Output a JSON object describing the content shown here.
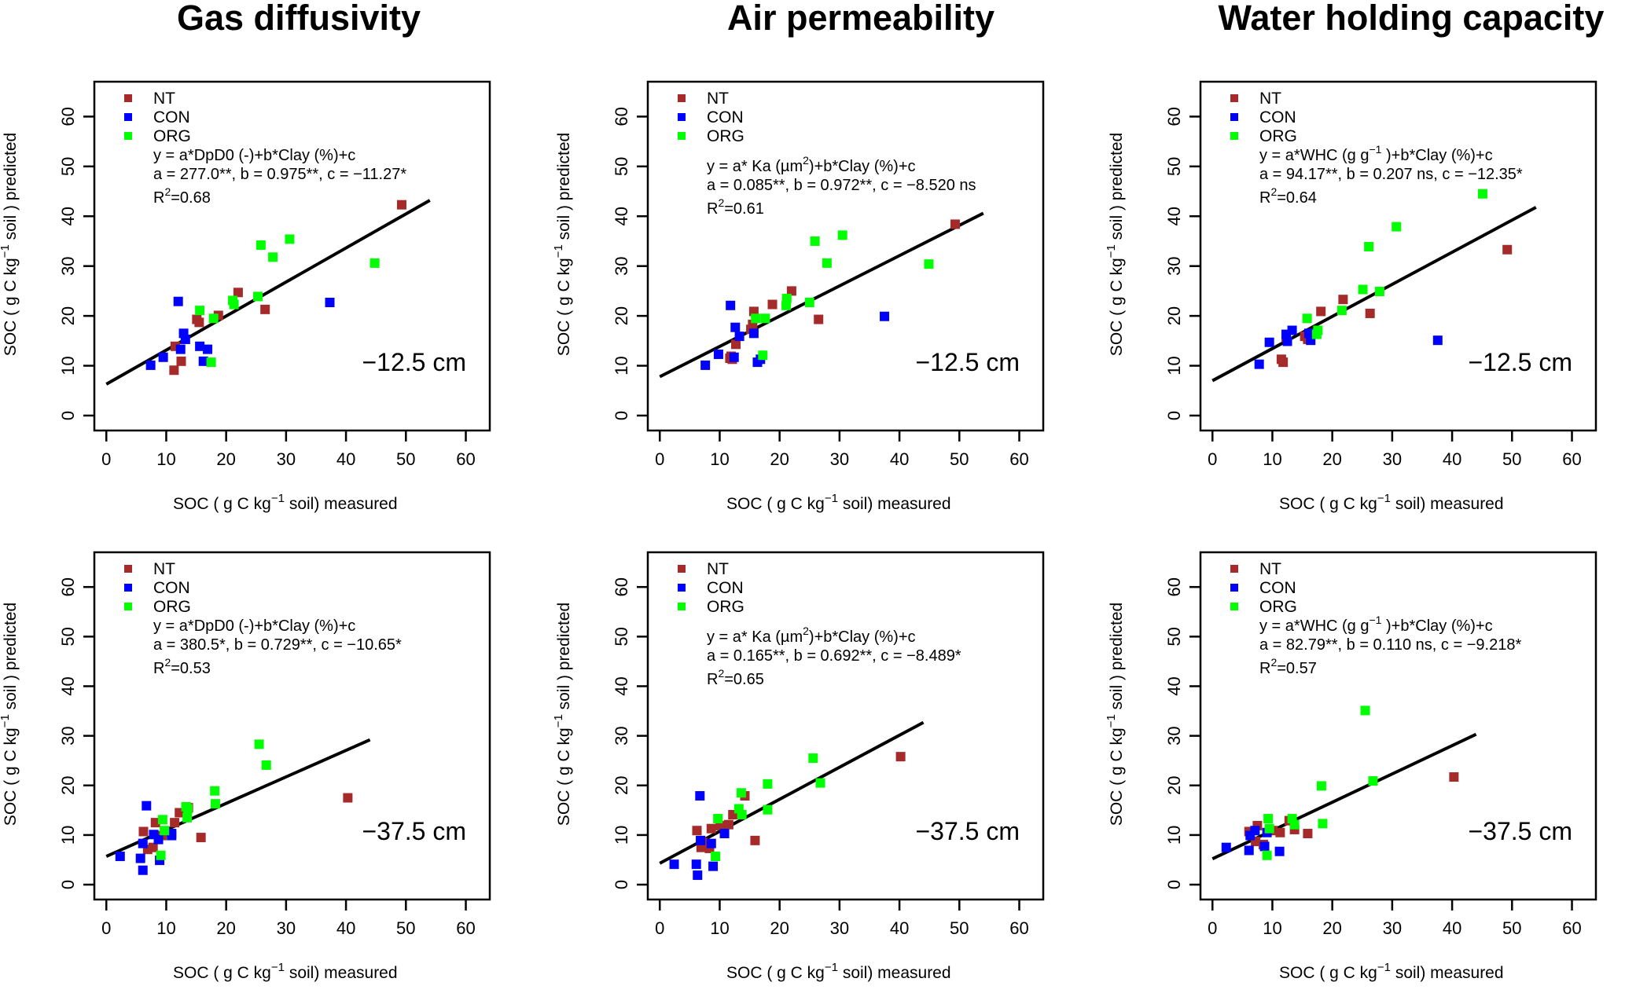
{
  "columns": [
    "Gas diffusivity",
    "Air permeability",
    "Water holding capacity"
  ],
  "legend": [
    {
      "name": "NT",
      "color": "#A52A2A"
    },
    {
      "name": "CON",
      "color": "#0000FF"
    },
    {
      "name": "ORG",
      "color": "#00FF00"
    }
  ],
  "axes": {
    "xlabel": {
      "pre": "SOC ( g C kg",
      "sup": "−1",
      "post": " soil) measured"
    },
    "ylabel": {
      "pre": "SOC ( g C kg",
      "sup": "−1",
      "post": " soil )  predicted"
    },
    "xticks": [
      "0",
      "10",
      "20",
      "30",
      "40",
      "50",
      "60"
    ],
    "yticks": [
      "0",
      "10",
      "20",
      "30",
      "40",
      "50",
      "60"
    ],
    "xlim": [
      -2,
      64
    ],
    "ylim": [
      -3,
      67
    ]
  },
  "chart_data": [
    {
      "type": "scatter",
      "title": "Gas diffusivity",
      "depth_label": "−12.5 cm",
      "equation": {
        "pre": "y = a*DpD0 (-)+b*Clay (%)+c",
        "sup": ""
      },
      "coef_text": "a = 277.0**, b = 0.975**, c = −11.27*",
      "r2": "0.68",
      "fit_line": {
        "x": [
          0,
          54
        ],
        "y": [
          6.3,
          43.2
        ]
      },
      "series": [
        {
          "name": "NT",
          "points": [
            [
              49.3,
              42.3
            ],
            [
              22,
              24.7
            ],
            [
              26.5,
              21.3
            ],
            [
              18.7,
              20.1
            ],
            [
              15.5,
              18.7
            ],
            [
              15.1,
              19.3
            ],
            [
              11.5,
              13.9
            ],
            [
              12.5,
              10.9
            ],
            [
              11.3,
              9.1
            ]
          ]
        },
        {
          "name": "CON",
          "points": [
            [
              12,
              22.9
            ],
            [
              37.3,
              22.7
            ],
            [
              12.9,
              16.5
            ],
            [
              13.2,
              15.3
            ],
            [
              15.6,
              13.9
            ],
            [
              16.9,
              13.3
            ],
            [
              7.4,
              10.1
            ],
            [
              9.5,
              11.7
            ],
            [
              12.4,
              13.3
            ],
            [
              16.2,
              10.9
            ]
          ]
        },
        {
          "name": "ORG",
          "points": [
            [
              25.8,
              34.2
            ],
            [
              30.6,
              35.4
            ],
            [
              27.8,
              31.8
            ],
            [
              44.8,
              30.6
            ],
            [
              25.3,
              23.9
            ],
            [
              21.3,
              22.3
            ],
            [
              21.1,
              23.1
            ],
            [
              15.6,
              21.1
            ],
            [
              17.9,
              19.5
            ],
            [
              17.5,
              10.7
            ]
          ]
        }
      ]
    },
    {
      "type": "scatter",
      "title": "Air permeability",
      "depth_label": "−12.5 cm",
      "equation": {
        "pre": "y = a* Ka (µm",
        "sup": "2",
        "post": ")+b*Clay (%)+c"
      },
      "coef_text": "a = 0.085**, b = 0.972**, c = −8.520 ns",
      "r2": "0.61",
      "fit_line": {
        "x": [
          0,
          54
        ],
        "y": [
          7.8,
          40.6
        ]
      },
      "series": [
        {
          "name": "NT",
          "points": [
            [
              49.3,
              38.4
            ],
            [
              22,
              25
            ],
            [
              18.8,
              22.3
            ],
            [
              26.5,
              19.3
            ],
            [
              15.7,
              20.9
            ],
            [
              15.5,
              18.3
            ],
            [
              15.2,
              17.3
            ],
            [
              12.7,
              14.3
            ],
            [
              11.9,
              11.9
            ],
            [
              11.7,
              11.5
            ],
            [
              12.1,
              11.3
            ]
          ]
        },
        {
          "name": "CON",
          "points": [
            [
              11.8,
              22.1
            ],
            [
              37.5,
              19.9
            ],
            [
              12.6,
              17.7
            ],
            [
              15.7,
              16.5
            ],
            [
              13.3,
              15.9
            ],
            [
              9.8,
              12.3
            ],
            [
              12.4,
              11.7
            ],
            [
              7.6,
              10.1
            ],
            [
              16.3,
              10.7
            ],
            [
              16.8,
              11.3
            ]
          ]
        },
        {
          "name": "ORG",
          "points": [
            [
              25.9,
              35
            ],
            [
              30.5,
              36.2
            ],
            [
              27.9,
              30.6
            ],
            [
              44.9,
              30.4
            ],
            [
              25,
              22.7
            ],
            [
              21.2,
              23.5
            ],
            [
              21.1,
              22.1
            ],
            [
              16,
              19.5
            ],
            [
              17.6,
              19.5
            ],
            [
              17.2,
              12.1
            ]
          ]
        }
      ]
    },
    {
      "type": "scatter",
      "title": "Water holding capacity",
      "depth_label": "−12.5 cm",
      "equation": {
        "pre": "y = a*WHC (g g",
        "sup": "−1",
        "post": " )+b*Clay (%)+c"
      },
      "coef_text": "a = 94.17**, b = 0.207 ns, c = −12.35*",
      "r2": "0.64",
      "fit_line": {
        "x": [
          0,
          54
        ],
        "y": [
          7.0,
          41.8
        ]
      },
      "series": [
        {
          "name": "NT",
          "points": [
            [
              49.2,
              33.3
            ],
            [
              21.8,
              23.3
            ],
            [
              26.3,
              20.5
            ],
            [
              18.1,
              20.9
            ],
            [
              15.4,
              15.9
            ],
            [
              15.9,
              15.3
            ],
            [
              12.3,
              15.7
            ],
            [
              11.5,
              11.3
            ],
            [
              11.8,
              10.7
            ]
          ]
        },
        {
          "name": "CON",
          "points": [
            [
              9.5,
              14.7
            ],
            [
              12.3,
              16.3
            ],
            [
              13.3,
              17.1
            ],
            [
              16.4,
              15.1
            ],
            [
              16.1,
              16.5
            ],
            [
              12.5,
              14.9
            ],
            [
              7.8,
              10.3
            ],
            [
              37.6,
              15.1
            ]
          ]
        },
        {
          "name": "ORG",
          "points": [
            [
              45.1,
              44.5
            ],
            [
              30.7,
              37.9
            ],
            [
              26.1,
              33.9
            ],
            [
              25.1,
              25.3
            ],
            [
              27.9,
              24.9
            ],
            [
              21.6,
              21.1
            ],
            [
              15.8,
              19.5
            ],
            [
              17.6,
              17.1
            ],
            [
              17.4,
              16.3
            ]
          ]
        }
      ]
    },
    {
      "type": "scatter",
      "title": "Gas diffusivity",
      "depth_label": "−37.5 cm",
      "equation": {
        "pre": "y = a*DpD0 (-)+b*Clay (%)+c",
        "sup": ""
      },
      "coef_text": "a = 380.5*, b = 0.729**, c = −10.65*",
      "r2": "0.53",
      "fit_line": {
        "x": [
          0,
          44
        ],
        "y": [
          5.7,
          29.2
        ]
      },
      "series": [
        {
          "name": "NT",
          "points": [
            [
              40.3,
              17.5
            ],
            [
              15.8,
              9.5
            ],
            [
              12.2,
              14.5
            ],
            [
              13.7,
              15.5
            ],
            [
              11.4,
              12.5
            ],
            [
              8.2,
              12.5
            ],
            [
              6.2,
              10.7
            ],
            [
              9.3,
              9.9
            ],
            [
              7.8,
              7.5
            ],
            [
              6.9,
              7.1
            ]
          ]
        },
        {
          "name": "CON",
          "points": [
            [
              6.7,
              15.9
            ],
            [
              2.3,
              5.7
            ],
            [
              5.7,
              5.3
            ],
            [
              6.1,
              2.9
            ],
            [
              8.9,
              4.9
            ],
            [
              6.1,
              8.3
            ],
            [
              7.9,
              10.1
            ],
            [
              10.9,
              9.9
            ],
            [
              10.9,
              10.3
            ],
            [
              8.7,
              9.1
            ]
          ]
        },
        {
          "name": "ORG",
          "points": [
            [
              25.5,
              28.3
            ],
            [
              26.7,
              24.1
            ],
            [
              18.1,
              18.9
            ],
            [
              18.2,
              16.3
            ],
            [
              13.3,
              15.7
            ],
            [
              13.6,
              15.3
            ],
            [
              13.5,
              13.5
            ],
            [
              9.4,
              13.1
            ],
            [
              9.7,
              10.9
            ],
            [
              9.1,
              5.9
            ]
          ]
        }
      ]
    },
    {
      "type": "scatter",
      "title": "Air permeability",
      "depth_label": "−37.5 cm",
      "equation": {
        "pre": "y = a* Ka (µm",
        "sup": "2",
        "post": ")+b*Clay (%)+c"
      },
      "coef_text": "a = 0.165**, b = 0.692**, c = −8.489*",
      "r2": "0.65",
      "fit_line": {
        "x": [
          0,
          44
        ],
        "y": [
          4.3,
          32.7
        ]
      },
      "series": [
        {
          "name": "NT",
          "points": [
            [
              40.2,
              25.8
            ],
            [
              14.2,
              17.9
            ],
            [
              15.9,
              8.9
            ],
            [
              12.2,
              14.1
            ],
            [
              11.5,
              12.1
            ],
            [
              10.1,
              11.9
            ],
            [
              8.6,
              11.3
            ],
            [
              6.2,
              10.9
            ],
            [
              7.2,
              8.5
            ],
            [
              8.3,
              7.3
            ],
            [
              6.9,
              7.5
            ]
          ]
        },
        {
          "name": "CON",
          "points": [
            [
              6.7,
              17.9
            ],
            [
              10.8,
              10.3
            ],
            [
              8.6,
              8.3
            ],
            [
              6.8,
              8.9
            ],
            [
              2.4,
              4.1
            ],
            [
              6.1,
              4.1
            ],
            [
              6.3,
              1.9
            ],
            [
              8.9,
              3.7
            ]
          ]
        },
        {
          "name": "ORG",
          "points": [
            [
              25.6,
              25.5
            ],
            [
              26.8,
              20.5
            ],
            [
              18,
              20.3
            ],
            [
              18,
              15.1
            ],
            [
              13.6,
              18.5
            ],
            [
              13.2,
              15.3
            ],
            [
              13.7,
              14.1
            ],
            [
              9.7,
              13.3
            ],
            [
              9.3,
              5.7
            ]
          ]
        }
      ]
    },
    {
      "type": "scatter",
      "title": "Water holding capacity",
      "depth_label": "−37.5 cm",
      "equation": {
        "pre": "y = a*WHC (g g",
        "sup": "−1",
        "post": " )+b*Clay (%)+c"
      },
      "coef_text": "a = 82.79**, b = 0.110 ns, c = −9.218*",
      "r2": "0.57",
      "fit_line": {
        "x": [
          0,
          44
        ],
        "y": [
          5.2,
          30.3
        ]
      },
      "series": [
        {
          "name": "NT",
          "points": [
            [
              40.3,
              21.7
            ],
            [
              12.8,
              12.9
            ],
            [
              15.9,
              10.3
            ],
            [
              13.7,
              11.1
            ],
            [
              11.3,
              10.5
            ],
            [
              7.5,
              11.9
            ],
            [
              6.1,
              10.7
            ],
            [
              8.5,
              8.1
            ],
            [
              7.2,
              8.7
            ],
            [
              10.1,
              10.9
            ]
          ]
        },
        {
          "name": "CON",
          "points": [
            [
              2.3,
              7.5
            ],
            [
              6.1,
              6.9
            ],
            [
              7.1,
              10.9
            ],
            [
              6.3,
              9.9
            ],
            [
              8.7,
              7.7
            ],
            [
              11.2,
              6.7
            ],
            [
              9.1,
              10.5
            ]
          ]
        },
        {
          "name": "ORG",
          "points": [
            [
              25.5,
              35.1
            ],
            [
              26.8,
              20.9
            ],
            [
              18.2,
              19.9
            ],
            [
              18.4,
              12.3
            ],
            [
              13.3,
              13.3
            ],
            [
              13.7,
              12.1
            ],
            [
              9.3,
              13.3
            ],
            [
              9.5,
              11.3
            ],
            [
              9.1,
              5.9
            ]
          ]
        }
      ]
    }
  ]
}
